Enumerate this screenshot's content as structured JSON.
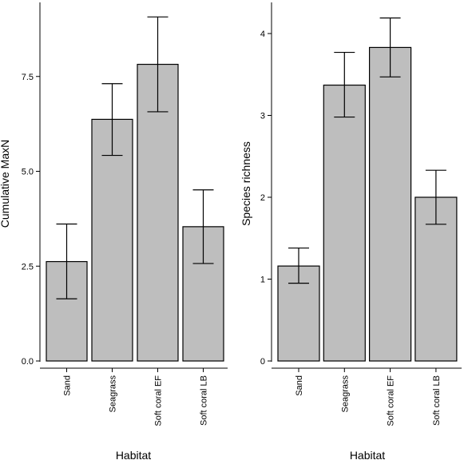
{
  "chart_data": [
    {
      "type": "bar",
      "categories": [
        "Sand",
        "Seagrass",
        "Soft coral EF",
        "Soft coral LB"
      ],
      "values": [
        2.62,
        6.37,
        7.82,
        3.54
      ],
      "error_low": [
        1.64,
        5.42,
        6.57,
        2.57
      ],
      "error_high": [
        3.61,
        7.31,
        9.07,
        4.51
      ],
      "xlabel": "Habitat",
      "ylabel": "Cumulative MaxN",
      "ylim": [
        0,
        9.6
      ],
      "yticks": [
        "0.0",
        "2.5",
        "5.0",
        "7.5"
      ],
      "grid": false,
      "bar_color": "#bebebe",
      "edge_color": "#000000"
    },
    {
      "type": "bar",
      "categories": [
        "Sand",
        "Seagrass",
        "Soft coral EF",
        "Soft coral LB"
      ],
      "values": [
        1.16,
        3.37,
        3.83,
        2.0
      ],
      "error_low": [
        0.95,
        2.98,
        3.47,
        1.67
      ],
      "error_high": [
        1.38,
        3.77,
        4.19,
        2.33
      ],
      "xlabel": "Habitat",
      "ylabel": "Species richness",
      "ylim": [
        0,
        4.4
      ],
      "yticks": [
        "0",
        "1",
        "2",
        "3",
        "4"
      ],
      "grid": false,
      "bar_color": "#bebebe",
      "edge_color": "#000000"
    }
  ]
}
